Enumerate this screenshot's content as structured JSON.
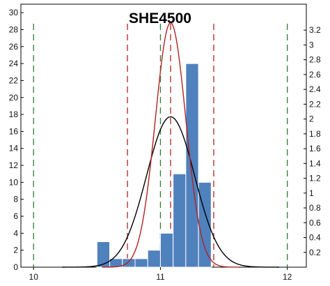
{
  "chart_data": {
    "type": "bar",
    "title": "SHE4500",
    "xlabel": "",
    "ylabel": "",
    "xlim": [
      9.9,
      12.15
    ],
    "ylim": [
      0,
      31
    ],
    "y2lim": [
      0,
      3.55
    ],
    "grid": false,
    "x_ticks": [
      10,
      11,
      12
    ],
    "y_ticks": [
      0,
      2,
      4,
      6,
      8,
      10,
      12,
      14,
      16,
      18,
      20,
      22,
      24,
      26,
      28,
      30
    ],
    "y2_ticks": [
      0.2,
      0.4,
      0.6,
      0.8,
      1,
      1.2,
      1.4,
      1.6,
      1.8,
      2,
      2.2,
      2.4,
      2.6,
      2.8,
      3,
      3.2
    ],
    "bin_width": 0.1,
    "bins": [
      {
        "x": 10.5,
        "count": 3
      },
      {
        "x": 10.6,
        "count": 1
      },
      {
        "x": 10.7,
        "count": 1
      },
      {
        "x": 10.8,
        "count": 1
      },
      {
        "x": 10.9,
        "count": 2
      },
      {
        "x": 11.0,
        "count": 4
      },
      {
        "x": 11.1,
        "count": 11
      },
      {
        "x": 11.2,
        "count": 24
      },
      {
        "x": 11.3,
        "count": 10
      }
    ],
    "curves": [
      {
        "color": "#000000",
        "mean": 11.08,
        "sd": 0.19,
        "peak": 2.03
      },
      {
        "color": "#b22222",
        "mean": 11.08,
        "sd": 0.12,
        "peak": 3.3
      }
    ],
    "reference_lines": [
      {
        "x": 10.0,
        "color": "#2e7d32",
        "dash": "long"
      },
      {
        "x": 12.0,
        "color": "#2e7d32",
        "dash": "long"
      },
      {
        "x": 11.0,
        "color": "#2e7d32",
        "dash": "long"
      },
      {
        "x": 10.74,
        "color": "#b22222",
        "dash": "long"
      },
      {
        "x": 11.42,
        "color": "#b22222",
        "dash": "long"
      },
      {
        "x": 11.08,
        "color": "#b22222",
        "dash": "long"
      }
    ],
    "colors": {
      "bar": "#4f81bd",
      "bar_edge": "#ffffff"
    }
  }
}
